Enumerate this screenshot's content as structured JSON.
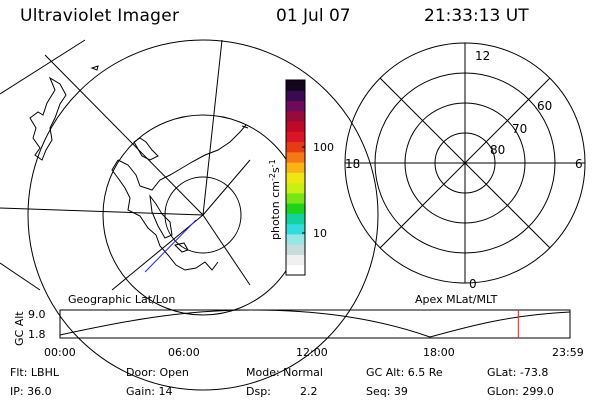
{
  "header": {
    "title": "Ultraviolet Imager",
    "date": "01 Jul 07",
    "time": "21:33:13 UT"
  },
  "colorbar": {
    "label": "photon cm",
    "label_sup1": "-2",
    "label_mid": "s",
    "label_sup2": "-1",
    "ticks": [
      "100",
      "10"
    ],
    "colors": [
      "#ffffff",
      "#f0f0f0",
      "#c8dcdc",
      "#96e6e6",
      "#32dcdc",
      "#14d2a0",
      "#1ed21e",
      "#78e614",
      "#c8f014",
      "#f0e614",
      "#fab414",
      "#f57814",
      "#e63c14",
      "#dc1428",
      "#be0a28",
      "#960a3c",
      "#6e0a5a",
      "#3c0a50",
      "#14051e"
    ]
  },
  "polar": {
    "labels": {
      "top": "12",
      "bottom": "0",
      "left": "18",
      "right": "6",
      "lat60": "60",
      "lat70": "70",
      "lat80": "80"
    }
  },
  "orbit": {
    "geo_caption": "Geographic Lat/Lon",
    "apex_caption": "Apex MLat/MLT",
    "axis_label": "GC Alt",
    "y_max": "9.0",
    "y_min": "1.8",
    "x_ticks": [
      "00:00",
      "06:00",
      "12:00",
      "18:00",
      "23:59"
    ],
    "marker_time_hours": 21.55,
    "marker_color": "#d02020"
  },
  "status": {
    "flt": "Flt: LBHL",
    "ip": "IP: 36.0",
    "door": "Door: Open",
    "gain": "Gain: 14",
    "mode": "Mode: Normal",
    "dsp_label": "Dsp:",
    "dsp_value": "2.2",
    "gc_alt": "GC Alt: 6.5 Re",
    "seq": "Seq: 39",
    "glat": "GLat: -73.8",
    "glon": "GLon: 299.0"
  }
}
